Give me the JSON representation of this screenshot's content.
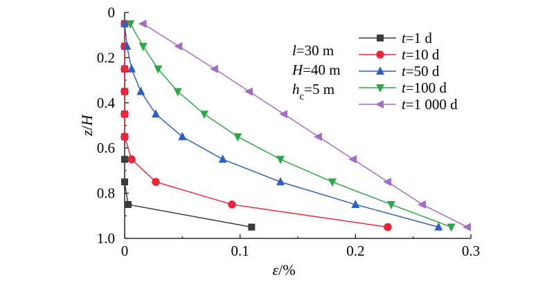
{
  "chart_data": {
    "type": "line",
    "xlabel": {
      "symbol": "ε",
      "unit": "/%"
    },
    "ylabel": {
      "var1": "z",
      "sep": "/",
      "var2": "H"
    },
    "xlim": [
      0,
      0.3
    ],
    "ylim": [
      0,
      1.0
    ],
    "y_inverted": true,
    "xticks": [
      {
        "value": 0,
        "label": "0"
      },
      {
        "value": 0.1,
        "label": "0.1"
      },
      {
        "value": 0.2,
        "label": "0.2"
      },
      {
        "value": 0.3,
        "label": "0.3"
      }
    ],
    "yticks": [
      {
        "value": 0,
        "label": "0"
      },
      {
        "value": 0.2,
        "label": "0.2"
      },
      {
        "value": 0.4,
        "label": "0.4"
      },
      {
        "value": 0.6,
        "label": "0.6"
      },
      {
        "value": 0.8,
        "label": "0.8"
      },
      {
        "value": 1.0,
        "label": "1.0"
      }
    ],
    "annotations": [
      {
        "var": "l",
        "sub": "",
        "rest": "=30 m"
      },
      {
        "var": "H",
        "sub": "",
        "rest": "=40 m"
      },
      {
        "var": "h",
        "sub": "c",
        "rest": "=5 m"
      }
    ],
    "legend_position": "top-right",
    "series": [
      {
        "name": "t=1 d",
        "legend_var": "t",
        "legend_rest": "=1 d",
        "color": "#3a3a3a",
        "marker": "square",
        "x": [
          0,
          0,
          0,
          0,
          0,
          0,
          0,
          0,
          0.003,
          0.11
        ],
        "y": [
          0.05,
          0.15,
          0.25,
          0.35,
          0.45,
          0.55,
          0.65,
          0.75,
          0.85,
          0.95
        ]
      },
      {
        "name": "t=10 d",
        "legend_var": "t",
        "legend_rest": "=10 d",
        "color": "#e8283a",
        "marker": "circle",
        "x": [
          0,
          0,
          0,
          0,
          0,
          0,
          0.006,
          0.027,
          0.093,
          0.228
        ],
        "y": [
          0.05,
          0.15,
          0.25,
          0.35,
          0.45,
          0.55,
          0.65,
          0.75,
          0.85,
          0.95
        ]
      },
      {
        "name": "t=50 d",
        "legend_var": "t",
        "legend_rest": "=50 d",
        "color": "#2f5fbf",
        "marker": "triangle-up",
        "x": [
          0,
          0.002,
          0.006,
          0.014,
          0.027,
          0.05,
          0.085,
          0.135,
          0.2,
          0.272
        ],
        "y": [
          0.05,
          0.15,
          0.25,
          0.35,
          0.45,
          0.55,
          0.65,
          0.75,
          0.85,
          0.95
        ]
      },
      {
        "name": "t=100 d",
        "legend_var": "t",
        "legend_rest": "=100 d",
        "color": "#2ca84a",
        "marker": "triangle-down",
        "x": [
          0.005,
          0.016,
          0.029,
          0.046,
          0.069,
          0.098,
          0.135,
          0.18,
          0.231,
          0.283
        ],
        "y": [
          0.05,
          0.15,
          0.25,
          0.35,
          0.45,
          0.55,
          0.65,
          0.75,
          0.85,
          0.95
        ]
      },
      {
        "name": "t=1 000 d",
        "legend_var": "t",
        "legend_rest": "=1 000 d",
        "color": "#a36cc8",
        "marker": "triangle-left",
        "x": [
          0.016,
          0.047,
          0.078,
          0.108,
          0.138,
          0.168,
          0.198,
          0.228,
          0.258,
          0.297
        ],
        "y": [
          0.05,
          0.15,
          0.25,
          0.35,
          0.45,
          0.55,
          0.65,
          0.75,
          0.85,
          0.95
        ]
      }
    ]
  }
}
